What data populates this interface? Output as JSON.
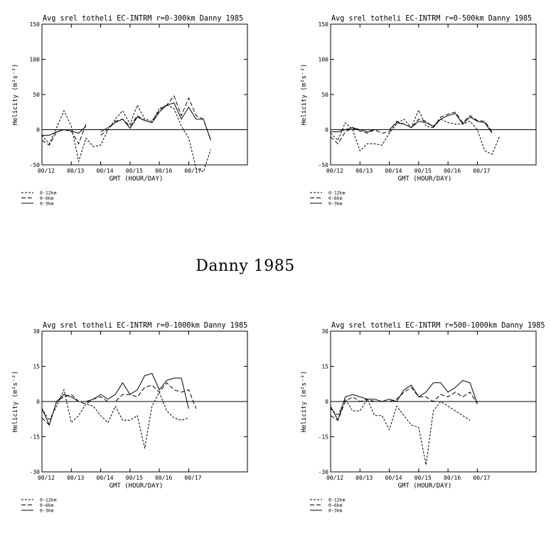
{
  "figure": {
    "title": "Danny 1985"
  },
  "chart_data": [
    {
      "type": "line",
      "title": "Avg srel totheli EC-INTRM r=0-300km Danny 1985",
      "xlabel": "GMT (HOUR/DAY)",
      "ylabel": "Helicity (m²s⁻²)",
      "ylim": [
        -50,
        150
      ],
      "yticks": [
        -50,
        0,
        50,
        100,
        150
      ],
      "xlim": [
        0,
        28
      ],
      "xticks": [
        0,
        4,
        8,
        12,
        16,
        20
      ],
      "xticklabels": [
        "00/12",
        "00/13",
        "00/14",
        "00/15",
        "00/16",
        "00/17"
      ],
      "x": [
        0,
        1,
        2,
        3,
        4,
        5,
        6,
        7,
        8,
        9,
        10,
        11,
        12,
        13,
        14,
        15,
        16,
        17,
        18,
        19,
        20,
        21,
        22,
        23,
        24,
        25,
        26,
        27
      ],
      "series": [
        {
          "name": "0-12km",
          "dash": "3,2",
          "values": [
            -8,
            -20,
            3,
            27,
            5,
            -45,
            -12,
            -24,
            -22,
            0,
            15,
            27,
            8,
            35,
            15,
            12,
            30,
            35,
            30,
            5,
            -12,
            -55,
            -60,
            -28,
            null,
            null,
            null,
            null
          ]
        },
        {
          "name": "0-6km",
          "dash": "6,3",
          "values": [
            -15,
            -22,
            -3,
            0,
            -2,
            -20,
            8,
            null,
            -8,
            0,
            12,
            15,
            5,
            20,
            13,
            10,
            28,
            35,
            48,
            20,
            45,
            20,
            15,
            -15,
            null,
            null,
            null,
            null
          ]
        },
        {
          "name": "0-3km",
          "dash": "",
          "values": [
            -8,
            -8,
            -3,
            0,
            -2,
            -5,
            5,
            null,
            -3,
            3,
            10,
            15,
            2,
            18,
            13,
            10,
            25,
            35,
            38,
            15,
            32,
            15,
            15,
            -15,
            null,
            null,
            null,
            null
          ]
        }
      ]
    },
    {
      "type": "line",
      "title": "Avg srel totheli EC-INTRM r=0-500km Danny 1985",
      "xlabel": "GMT (HOUR/DAY)",
      "ylabel": "Helicity (m²s⁻²)",
      "ylim": [
        -50,
        150
      ],
      "yticks": [
        -50,
        0,
        50,
        100,
        150
      ],
      "xlim": [
        0,
        28
      ],
      "xticks": [
        0,
        4,
        8,
        12,
        16,
        20
      ],
      "xticklabels": [
        "00/12",
        "00/13",
        "00/14",
        "00/15",
        "00/16",
        "00/17"
      ],
      "x": [
        0,
        1,
        2,
        3,
        4,
        5,
        6,
        7,
        8,
        9,
        10,
        11,
        12,
        13,
        14,
        15,
        16,
        17,
        18,
        19,
        20,
        21,
        22,
        23,
        24,
        25,
        26,
        27
      ],
      "series": [
        {
          "name": "0-12km",
          "dash": "3,2",
          "values": [
            -5,
            -15,
            10,
            0,
            -30,
            -20,
            -20,
            -22,
            -5,
            8,
            15,
            3,
            28,
            5,
            3,
            15,
            10,
            8,
            8,
            12,
            0,
            -30,
            -35,
            -10,
            null,
            null,
            null,
            null
          ]
        },
        {
          "name": "0-6km",
          "dash": "6,3",
          "values": [
            -10,
            -20,
            -3,
            2,
            -2,
            -5,
            0,
            -5,
            -3,
            12,
            8,
            3,
            15,
            12,
            3,
            18,
            22,
            25,
            10,
            20,
            13,
            12,
            -3,
            null,
            null,
            null,
            null,
            null
          ]
        },
        {
          "name": "0-3km",
          "dash": "",
          "values": [
            -3,
            -3,
            0,
            3,
            0,
            -3,
            0,
            0,
            0,
            10,
            8,
            3,
            12,
            10,
            5,
            15,
            20,
            23,
            8,
            18,
            12,
            10,
            -5,
            null,
            null,
            null,
            null,
            null
          ]
        }
      ]
    },
    {
      "type": "line",
      "title": "Avg srel totheli EC-INTRM r=0-1000km Danny 1985",
      "xlabel": "GMT (HOUR/DAY)",
      "ylabel": "Helicity (m²s⁻²)",
      "ylim": [
        -30,
        30
      ],
      "yticks": [
        -30,
        -15,
        0,
        15,
        30
      ],
      "xlim": [
        0,
        28
      ],
      "xticks": [
        0,
        4,
        8,
        12,
        16,
        20
      ],
      "xticklabels": [
        "00/12",
        "00/13",
        "00/14",
        "00/15",
        "00/16",
        "00/17"
      ],
      "x": [
        0,
        1,
        2,
        3,
        4,
        5,
        6,
        7,
        8,
        9,
        10,
        11,
        12,
        13,
        14,
        15,
        16,
        17,
        18,
        19,
        20,
        21,
        22,
        23,
        24,
        25,
        26,
        27
      ],
      "series": [
        {
          "name": "0-12km",
          "dash": "3,2",
          "values": [
            -3,
            -8,
            -2,
            5,
            -9,
            -6,
            -1,
            -2,
            -6,
            -9,
            -2,
            -8,
            -8,
            -6,
            -20,
            -2,
            4,
            -4,
            -7,
            -8,
            -7,
            null,
            null,
            null,
            null,
            null,
            null,
            null
          ]
        },
        {
          "name": "0-6km",
          "dash": "6,3",
          "values": [
            -7,
            -10,
            0,
            2,
            3,
            0,
            -1,
            1,
            2,
            0,
            0,
            3,
            3,
            2,
            6,
            7,
            4,
            8,
            5,
            4,
            5,
            -3,
            null,
            null,
            null,
            null,
            null,
            null
          ]
        },
        {
          "name": "0-3km",
          "dash": "",
          "values": [
            -3,
            -10,
            0,
            3,
            2,
            0,
            0,
            1,
            3,
            1,
            3,
            8,
            3,
            5,
            11,
            12,
            5,
            9,
            10,
            10,
            -3,
            null,
            null,
            null,
            null,
            null,
            null,
            null
          ]
        }
      ]
    },
    {
      "type": "line",
      "title": "Avg srel totheli EC-INTRM r=500-1000km Danny 1985",
      "xlabel": "GMT (HOUR/DAY)",
      "ylabel": "Helicity (m²s⁻²)",
      "ylim": [
        -30,
        30
      ],
      "yticks": [
        -30,
        -15,
        0,
        15,
        30
      ],
      "xlim": [
        0,
        28
      ],
      "xticks": [
        0,
        4,
        8,
        12,
        16,
        20
      ],
      "xticklabels": [
        "00/12",
        "00/13",
        "00/14",
        "00/15",
        "00/16",
        "00/17"
      ],
      "x": [
        0,
        1,
        2,
        3,
        4,
        5,
        6,
        7,
        8,
        9,
        10,
        11,
        12,
        13,
        14,
        15,
        16,
        17,
        18,
        19,
        20,
        21,
        22,
        23,
        24,
        25,
        26,
        27
      ],
      "series": [
        {
          "name": "0-12km",
          "dash": "3,2",
          "values": [
            -3,
            -6,
            1,
            -4,
            -4,
            1,
            -6,
            -6,
            -12,
            -2,
            -6,
            -10,
            -11,
            -27,
            -4,
            0,
            -2,
            -4,
            -6,
            -8,
            null,
            null,
            null,
            null,
            null,
            null,
            null,
            null
          ]
        },
        {
          "name": "0-6km",
          "dash": "6,3",
          "values": [
            -6,
            -8,
            0,
            2,
            0,
            1,
            0,
            0,
            0,
            1,
            4,
            6,
            2,
            2,
            0,
            3,
            2,
            4,
            2,
            4,
            -1,
            null,
            null,
            null,
            null,
            null,
            null,
            null
          ]
        },
        {
          "name": "0-3km",
          "dash": "",
          "values": [
            -2,
            -8,
            2,
            3,
            2,
            1,
            1,
            0,
            1,
            0,
            5,
            7,
            2,
            4,
            8,
            8,
            4,
            6,
            9,
            8,
            -1,
            null,
            null,
            null,
            null,
            null,
            null,
            null
          ]
        }
      ]
    }
  ]
}
